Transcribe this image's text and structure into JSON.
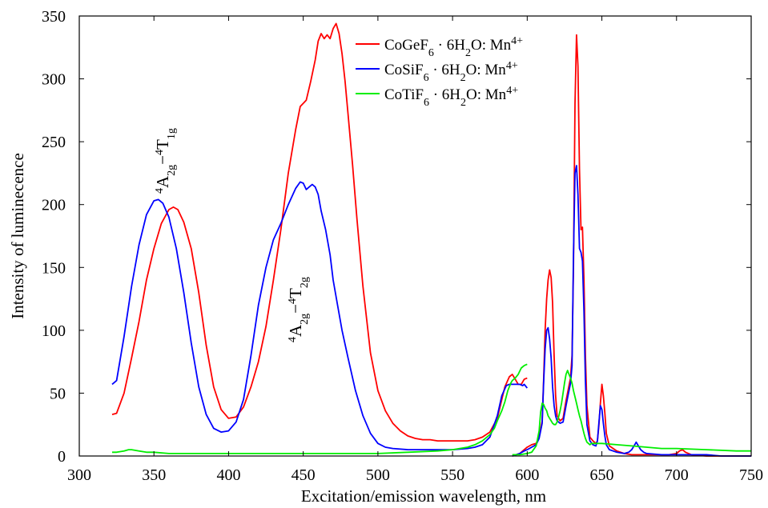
{
  "chart_data": {
    "type": "line",
    "title": "",
    "xlabel": "Excitation/emission wavelength, nm",
    "ylabel": "Intensity of luminecence",
    "xlim": [
      300,
      750
    ],
    "ylim": [
      0,
      350
    ],
    "xticks": [
      "300",
      "350",
      "400",
      "450",
      "500",
      "550",
      "600",
      "650",
      "700",
      "750"
    ],
    "yticks": [
      "0",
      "50",
      "100",
      "150",
      "200",
      "250",
      "300",
      "350"
    ],
    "grid": false,
    "legend_position": "top-right",
    "legend": [
      {
        "series": 0,
        "base": "CoGeF",
        "sub1": "6",
        "mid": " · 6H",
        "sub2": "2",
        "post": "O: Mn",
        "sup": "4+"
      },
      {
        "series": 1,
        "base": "CoSiF",
        "sub1": "6",
        "mid": " · 6H",
        "sub2": "2",
        "post": "O: Mn",
        "sup": "4+"
      },
      {
        "series": 2,
        "base": "CoTiF",
        "sub1": "6",
        "mid": " · 6H",
        "sub2": "2",
        "post": "O: Mn",
        "sup": "4+"
      }
    ],
    "annotations": [
      {
        "sup": "4",
        "A": "A",
        "sub_a": "2g",
        "dash": "−",
        "sup2": "4",
        "T": "T",
        "sub_t": "1g"
      },
      {
        "sup": "4",
        "A": "A",
        "sub_a": "2g",
        "dash": "−",
        "sup2": "4",
        "T": "T",
        "sub_t": "2g"
      }
    ],
    "series": [
      {
        "name": "CoGeF6 · 6H2O: Mn4+",
        "color": "#ff0000",
        "segments": [
          {
            "x": [
              322,
              325,
              330,
              335,
              340,
              345,
              350,
              355,
              360,
              363,
              366,
              370,
              375,
              380,
              385,
              390,
              395,
              400,
              405,
              410,
              415,
              420,
              425,
              430,
              435,
              440,
              445,
              448,
              452,
              455,
              458,
              460,
              462,
              464,
              466,
              468,
              470,
              472,
              474,
              476,
              478,
              480,
              483,
              486,
              490,
              495,
              500,
              505,
              510,
              515,
              520,
              525,
              530,
              535,
              540,
              545,
              550,
              555,
              560,
              565,
              570,
              575,
              580,
              585,
              588,
              590,
              592,
              594,
              596,
              598,
              600
            ],
            "y": [
              33,
              34,
              50,
              78,
              107,
              140,
              165,
              185,
              196,
              198,
              196,
              186,
              165,
              130,
              88,
              55,
              37,
              30,
              31,
              39,
              55,
              75,
              103,
              140,
              180,
              225,
              260,
              278,
              283,
              298,
              315,
              330,
              336,
              332,
              335,
              332,
              340,
              344,
              336,
              320,
              298,
              272,
              232,
              188,
              135,
              82,
              52,
              36,
              26,
              20,
              16,
              14,
              13,
              13,
              12,
              12,
              12,
              12,
              12,
              13,
              15,
              19,
              30,
              55,
              63,
              65,
              61,
              57,
              57,
              61,
              62
            ]
          },
          {
            "x": [
              590,
              595,
              598,
              600,
              603,
              606,
              608,
              610,
              611,
              612,
              613,
              614,
              615,
              616,
              617,
              618,
              619,
              620,
              622,
              624,
              626,
              628,
              629,
              630,
              631,
              632,
              633,
              634,
              635,
              636,
              637,
              638,
              639,
              640,
              642,
              644,
              646,
              647,
              648,
              649,
              650,
              651,
              652,
              653,
              655,
              660,
              665,
              670,
              675,
              680,
              690,
              695,
              700,
              702,
              704,
              706,
              710,
              720,
              730,
              740,
              750
            ],
            "y": [
              0,
              2,
              5,
              7,
              9,
              10,
              15,
              28,
              60,
              100,
              125,
              140,
              148,
              142,
              122,
              80,
              48,
              32,
              28,
              30,
              44,
              56,
              62,
              80,
              150,
              280,
              335,
              310,
              228,
              180,
              182,
              140,
              80,
              40,
              15,
              12,
              10,
              12,
              24,
              42,
              57,
              48,
              34,
              18,
              8,
              4,
              2,
              1,
              1,
              1,
              1,
              1,
              2,
              4,
              5,
              3,
              1,
              0,
              0,
              0,
              0
            ]
          }
        ]
      },
      {
        "name": "CoSiF6 · 6H2O: Mn4+",
        "color": "#0000ff",
        "segments": [
          {
            "x": [
              322,
              325,
              330,
              335,
              340,
              345,
              350,
              353,
              356,
              360,
              365,
              370,
              375,
              380,
              385,
              390,
              395,
              400,
              405,
              410,
              415,
              420,
              425,
              430,
              435,
              440,
              445,
              448,
              450,
              452,
              454,
              456,
              458,
              460,
              462,
              465,
              468,
              470,
              473,
              476,
              480,
              485,
              490,
              495,
              500,
              505,
              510,
              520,
              530,
              540,
              550,
              560,
              565,
              570,
              575,
              580,
              583,
              586,
              588,
              590,
              593,
              595,
              597,
              598,
              600
            ],
            "y": [
              57,
              60,
              95,
              135,
              168,
              192,
              203,
              204,
              201,
              190,
              165,
              130,
              90,
              55,
              33,
              22,
              19,
              20,
              27,
              45,
              80,
              120,
              150,
              172,
              185,
              200,
              213,
              218,
              217,
              212,
              214,
              216,
              214,
              208,
              195,
              180,
              160,
              140,
              120,
              100,
              78,
              52,
              32,
              18,
              10,
              7,
              6,
              5,
              5,
              5,
              5,
              6,
              7,
              9,
              15,
              32,
              48,
              56,
              57,
              57,
              57,
              57,
              56,
              57,
              54
            ]
          },
          {
            "x": [
              590,
              595,
              598,
              600,
              603,
              606,
              608,
              610,
              611,
              612,
              613,
              614,
              615,
              616,
              617,
              618,
              619,
              620,
              622,
              624,
              626,
              628,
              629,
              630,
              631,
              632,
              633,
              634,
              635,
              636,
              637,
              638,
              639,
              640,
              642,
              644,
              646,
              647,
              648,
              649,
              650,
              651,
              652,
              653,
              655,
              660,
              665,
              668,
              670,
              672,
              673,
              674,
              676,
              678,
              680,
              690,
              700,
              705,
              710,
              720,
              730,
              750
            ],
            "y": [
              0,
              2,
              4,
              5,
              7,
              9,
              14,
              26,
              58,
              85,
              100,
              102,
              93,
              78,
              55,
              40,
              32,
              28,
              26,
              27,
              40,
              52,
              58,
              72,
              160,
              225,
              231,
              208,
              165,
              162,
              155,
              115,
              60,
              25,
              12,
              9,
              8,
              12,
              26,
              40,
              37,
              26,
              16,
              9,
              5,
              3,
              2,
              3,
              5,
              9,
              11,
              9,
              5,
              3,
              2,
              1,
              1,
              1,
              1,
              1,
              0,
              0
            ]
          }
        ]
      },
      {
        "name": "CoTiF6 · 6H2O: Mn4+",
        "color": "#00ee00",
        "segments": [
          {
            "x": [
              322,
              325,
              330,
              333,
              335,
              340,
              345,
              350,
              360,
              370,
              380,
              400,
              420,
              450,
              480,
              500,
              520,
              540,
              550,
              560,
              565,
              570,
              575,
              578,
              580,
              583,
              585,
              587,
              589,
              590,
              592,
              594,
              596,
              598,
              600
            ],
            "y": [
              3,
              3,
              4,
              5,
              5,
              4,
              3,
              3,
              2,
              2,
              2,
              2,
              2,
              2,
              2,
              2,
              3,
              4,
              5,
              7,
              9,
              12,
              17,
              22,
              28,
              36,
              43,
              52,
              58,
              60,
              62,
              65,
              70,
              72,
              73
            ]
          },
          {
            "x": [
              590,
              595,
              600,
              603,
              606,
              608,
              609,
              610,
              611,
              612,
              613,
              614,
              615,
              616,
              617,
              618,
              619,
              620,
              621,
              622,
              623,
              624,
              625,
              626,
              627,
              628,
              629,
              630,
              631,
              632,
              633,
              634,
              635,
              636,
              637,
              638,
              639,
              640,
              641,
              642,
              643,
              645,
              650,
              660,
              670,
              680,
              690,
              700,
              720,
              740,
              750
            ],
            "y": [
              1,
              1,
              2,
              3,
              8,
              20,
              35,
              42,
              41,
              38,
              36,
              32,
              30,
              28,
              26,
              25,
              25,
              27,
              31,
              36,
              42,
              50,
              58,
              65,
              68,
              65,
              62,
              58,
              52,
              47,
              42,
              37,
              32,
              28,
              23,
              18,
              14,
              11,
              10,
              9,
              10,
              10,
              10,
              9,
              8,
              7,
              6,
              6,
              5,
              4,
              4
            ]
          }
        ]
      }
    ]
  }
}
